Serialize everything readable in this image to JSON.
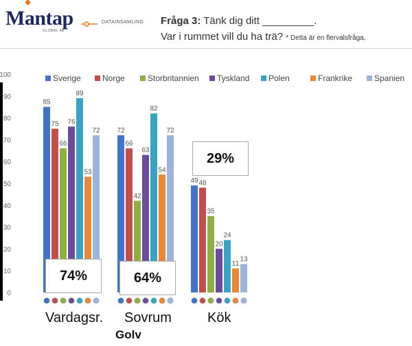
{
  "header": {
    "logo": "Mantap",
    "logo_sub": "GLOBAL AB",
    "step_label": "DATAINSAMLING",
    "question_num": "Fråga 3:",
    "question_text": "Tänk dig ditt _________.",
    "question_line2": "Var i rummet vill du ha trä?",
    "question_note": "* Detta är en flervalsfråga,"
  },
  "colors": {
    "Sverige": "#4472c4",
    "Norge": "#c0504d",
    "Storbritannien": "#8fae48",
    "Tyskland": "#6b4c9a",
    "Polen": "#3ba3bf",
    "Frankrike": "#e6893a",
    "Spanien": "#9db3da"
  },
  "chart_data": {
    "type": "bar",
    "categories": [
      "Vardagsr.",
      "Sovrum",
      "Kök"
    ],
    "series": [
      {
        "name": "Sverige",
        "values": [
          85,
          72,
          49
        ]
      },
      {
        "name": "Norge",
        "values": [
          75,
          66,
          48
        ]
      },
      {
        "name": "Storbritannien",
        "values": [
          66,
          42,
          35
        ]
      },
      {
        "name": "Tyskland",
        "values": [
          76,
          63,
          20
        ]
      },
      {
        "name": "Polen",
        "values": [
          89,
          82,
          24
        ]
      },
      {
        "name": "Frankrike",
        "values": [
          53,
          54,
          11
        ]
      },
      {
        "name": "Spanien",
        "values": [
          72,
          72,
          13
        ]
      }
    ],
    "ylim": [
      0,
      100
    ],
    "yticks": [
      "0",
      "10",
      "20",
      "30",
      "40",
      "50",
      "60",
      "70",
      "80",
      "90",
      "100"
    ],
    "legend_position": "top",
    "grid": false,
    "totals": [
      "74%",
      "64%",
      "29%"
    ],
    "group_label": "Golv"
  }
}
